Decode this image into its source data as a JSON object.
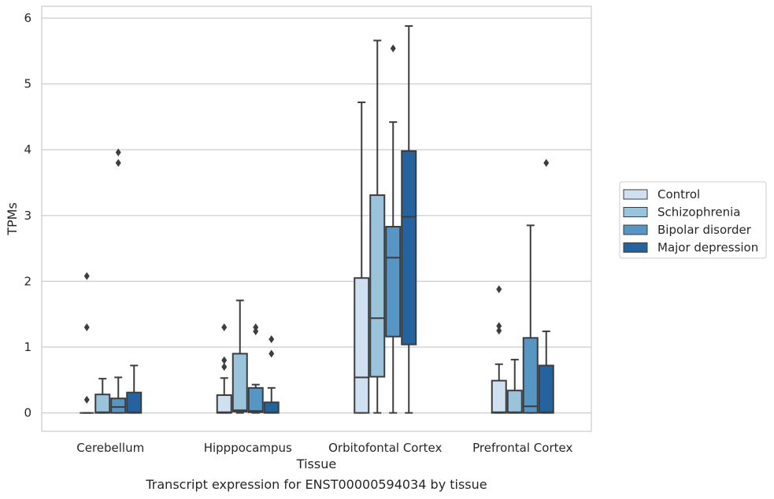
{
  "chart_data": {
    "type": "box",
    "xlabel": "Tissue",
    "ylabel": "TPMs",
    "caption": "Transcript expression for ENST00000594034 by tissue",
    "ylim": [
      -0.28,
      6.18
    ],
    "yticks": [
      0,
      1,
      2,
      3,
      4,
      5,
      6
    ],
    "grid": "horizontal",
    "legend_position": "right",
    "categories": [
      "Cerebellum",
      "Hipppocampus",
      "Orbitofontal Cortex",
      "Prefrontal Cortex"
    ],
    "series": [
      {
        "name": "Control",
        "color": "#cfe0f1",
        "boxes": [
          {
            "min": 0,
            "q1": 0,
            "median": 0,
            "q3": 0,
            "max": 0,
            "outliers": [
              0.2,
              1.3,
              2.08
            ]
          },
          {
            "min": 0,
            "q1": 0,
            "median": 0.01,
            "q3": 0.27,
            "max": 0.53,
            "outliers": [
              0.7,
              0.8,
              1.3
            ]
          },
          {
            "min": 0,
            "q1": 0,
            "median": 0.54,
            "q3": 2.05,
            "max": 4.72,
            "outliers": []
          },
          {
            "min": 0,
            "q1": 0,
            "median": 0.01,
            "q3": 0.49,
            "max": 0.74,
            "outliers": [
              1.25,
              1.32,
              1.88
            ]
          }
        ]
      },
      {
        "name": "Schizophrenia",
        "color": "#9ac3dc",
        "boxes": [
          {
            "min": 0,
            "q1": 0,
            "median": 0.01,
            "q3": 0.28,
            "max": 0.52,
            "outliers": []
          },
          {
            "min": 0,
            "q1": 0.02,
            "median": 0.04,
            "q3": 0.9,
            "max": 1.71,
            "outliers": []
          },
          {
            "min": 0,
            "q1": 0.55,
            "median": 1.44,
            "q3": 3.31,
            "max": 5.66,
            "outliers": []
          },
          {
            "min": 0,
            "q1": 0,
            "median": 0.01,
            "q3": 0.34,
            "max": 0.81,
            "outliers": []
          }
        ]
      },
      {
        "name": "Bipolar disorder",
        "color": "#5596c4",
        "boxes": [
          {
            "min": 0,
            "q1": 0,
            "median": 0.09,
            "q3": 0.22,
            "max": 0.54,
            "outliers": [
              3.8,
              3.96
            ]
          },
          {
            "min": 0,
            "q1": 0.01,
            "median": 0.03,
            "q3": 0.38,
            "max": 0.43,
            "outliers": [
              1.24,
              1.3
            ]
          },
          {
            "min": 0,
            "q1": 1.16,
            "median": 2.36,
            "q3": 2.83,
            "max": 4.42,
            "outliers": [
              5.54
            ]
          },
          {
            "min": 0,
            "q1": 0,
            "median": 0.1,
            "q3": 1.14,
            "max": 2.85,
            "outliers": []
          }
        ]
      },
      {
        "name": "Major depression",
        "color": "#2363a0",
        "boxes": [
          {
            "min": 0,
            "q1": 0,
            "median": 0.01,
            "q3": 0.31,
            "max": 0.72,
            "outliers": []
          },
          {
            "min": 0,
            "q1": 0,
            "median": 0.01,
            "q3": 0.16,
            "max": 0.38,
            "outliers": [
              0.9,
              1.12
            ]
          },
          {
            "min": 0,
            "q1": 1.04,
            "median": 2.98,
            "q3": 3.98,
            "max": 5.88,
            "outliers": []
          },
          {
            "min": 0,
            "q1": 0,
            "median": 0.01,
            "q3": 0.72,
            "max": 1.24,
            "outliers": [
              3.8
            ]
          }
        ]
      }
    ]
  }
}
